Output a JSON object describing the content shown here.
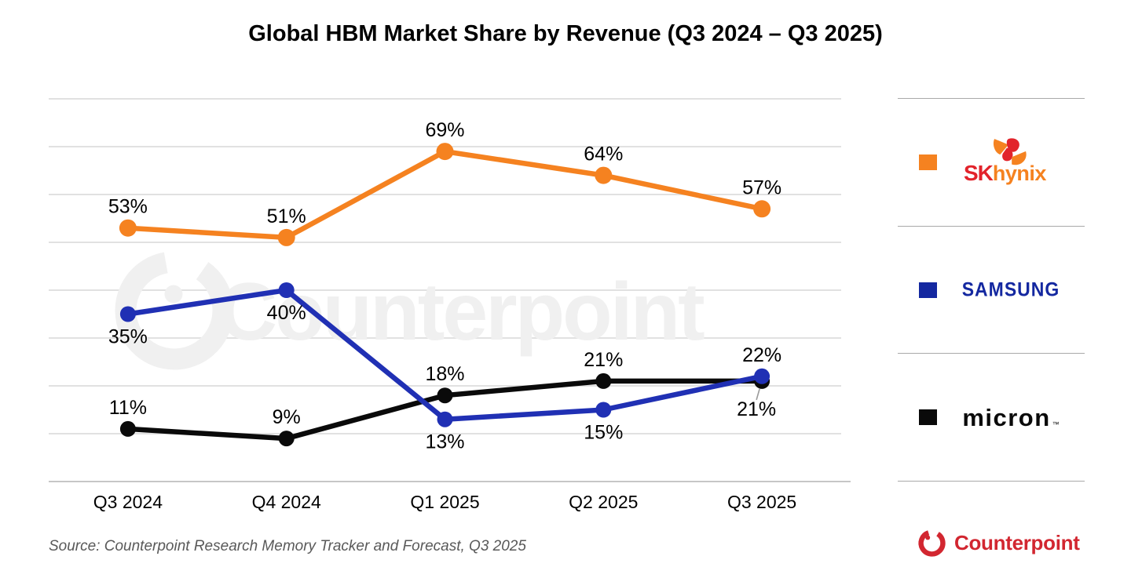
{
  "title": "Global HBM Market Share by Revenue (Q3 2024 – Q3 2025)",
  "source": "Source: Counterpoint Research Memory Tracker and Forecast, Q3 2025",
  "watermark": {
    "text": "Counterpoint"
  },
  "branding": {
    "name": "Counterpoint",
    "color": "#d22630"
  },
  "legend": {
    "items": [
      {
        "name": "SK hynix",
        "swatch_color": "#f58220",
        "logo": {
          "part1": "SK",
          "part2": "hynix"
        }
      },
      {
        "name": "Samsung",
        "swatch_color": "#1428a0",
        "wordmark": "SAMSUNG"
      },
      {
        "name": "Micron",
        "swatch_color": "#0a0a0a",
        "wordmark": "micron",
        "tm": "™"
      }
    ]
  },
  "colors": {
    "grid": "#e1e1e1",
    "axis": "#c6c6c6",
    "divider": "#a9a9a9",
    "watermark": "#f0f0f0",
    "label": "#000000",
    "leader": "#9a9a9a"
  },
  "chart_data": {
    "type": "line",
    "title": "Global HBM Market Share by Revenue (Q3 2024 – Q3 2025)",
    "categories": [
      "Q3 2024",
      "Q4 2024",
      "Q1 2025",
      "Q2 2025",
      "Q3 2025"
    ],
    "series": [
      {
        "name": "SK hynix",
        "color": "#f58220",
        "values": [
          53,
          51,
          69,
          64,
          57
        ],
        "label_position": [
          "above",
          "above",
          "above",
          "above",
          "above"
        ]
      },
      {
        "name": "Samsung",
        "color": "#2030b4",
        "values": [
          35,
          40,
          13,
          15,
          22
        ],
        "label_position": [
          "below",
          "below",
          "below",
          "below",
          "above"
        ]
      },
      {
        "name": "Micron",
        "color": "#0a0a0a",
        "values": [
          11,
          9,
          18,
          21,
          21
        ],
        "label_position": [
          "above",
          "above",
          "above",
          "above",
          "below-leader"
        ]
      }
    ],
    "value_suffix": "%",
    "ylim": [
      0,
      80
    ],
    "grid_step": 10,
    "grid": true,
    "y_axis_labels": false,
    "legend_position": "right",
    "xlabel": "",
    "ylabel": ""
  }
}
